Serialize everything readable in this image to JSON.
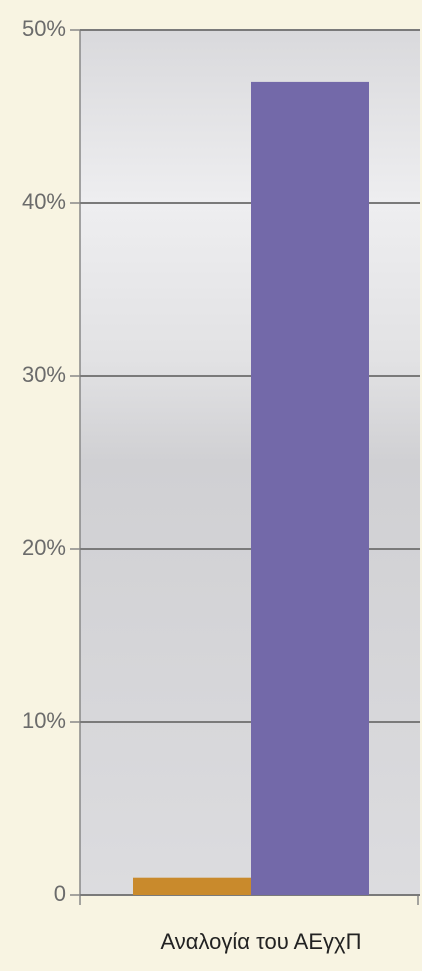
{
  "chart_data": {
    "type": "bar",
    "categories": [
      "Αναλογία του ΑΕγχΠ"
    ],
    "series": [
      {
        "color": "#c98a2c",
        "values": [
          1
        ]
      },
      {
        "color": "#7369a9",
        "values": [
          47
        ]
      }
    ],
    "ylim": [
      0,
      50
    ],
    "yticks": [
      0,
      {
        "value": 10,
        "label": "10%"
      },
      {
        "value": 20,
        "label": "20%"
      },
      {
        "value": 30,
        "label": "30%"
      },
      {
        "value": 40,
        "label": "40%"
      },
      {
        "value": 50,
        "label": "50%"
      }
    ],
    "grid": true
  }
}
